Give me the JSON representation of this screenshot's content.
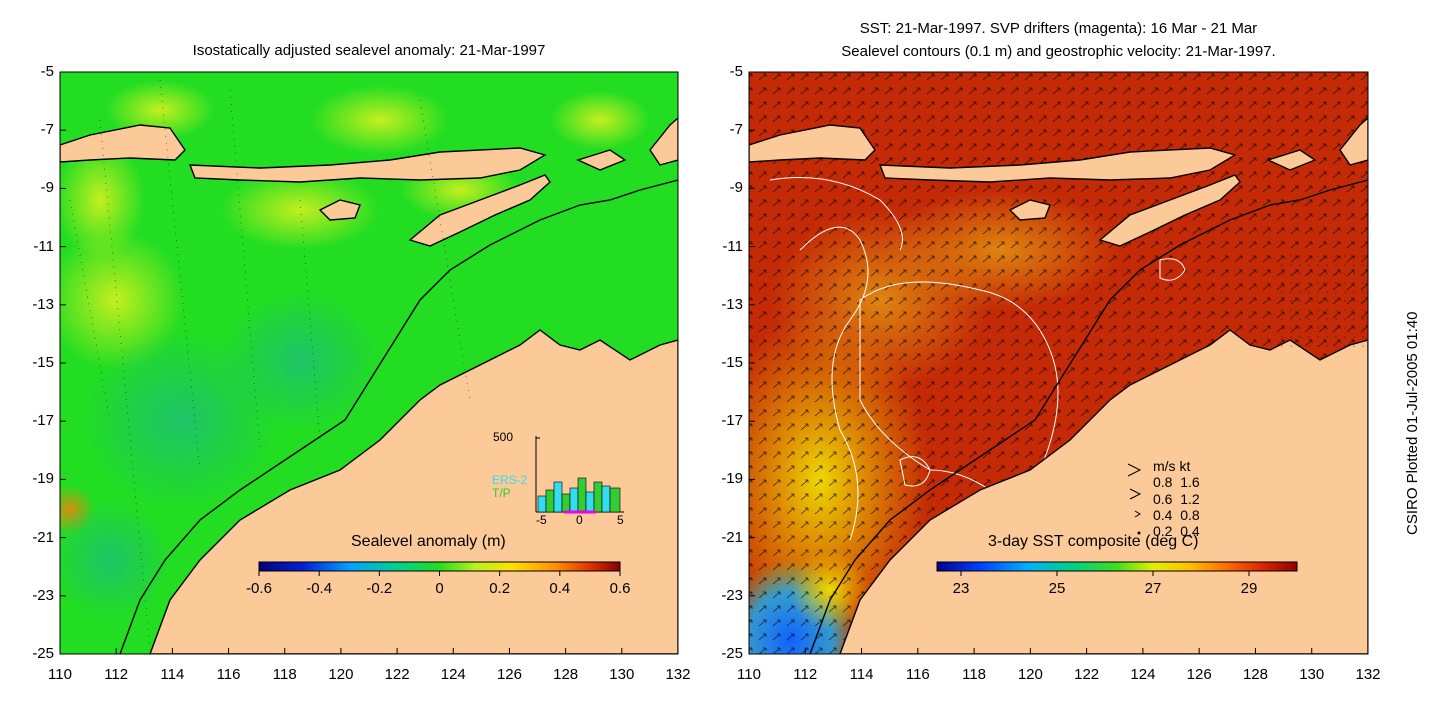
{
  "left_panel": {
    "title": "Isostatically adjusted sealevel anomaly: 21-Mar-1997",
    "colorbar": {
      "label": "Sealevel anomaly (m)",
      "ticks": [
        "-0.6",
        "-0.4",
        "-0.2",
        "0",
        "0.2",
        "0.4",
        "0.6"
      ],
      "range": [
        -0.6,
        0.6
      ]
    },
    "histogram": {
      "ymax_label": "500",
      "series": [
        {
          "name": "ERS-2",
          "color": "#33ddee"
        },
        {
          "name": "T/P",
          "color": "#33cc33"
        }
      ],
      "xticks": [
        "-5",
        "0",
        "5"
      ]
    }
  },
  "right_panel": {
    "title_line1": "SST: 21-Mar-1997. SVP drifters (magenta): 16 Mar - 21 Mar",
    "title_line2": "Sealevel contours (0.1 m) and geostrophic velocity: 21-Mar-1997.",
    "colorbar": {
      "label": "3-day SST composite (deg C)",
      "ticks": [
        "23",
        "25",
        "27",
        "29"
      ],
      "range": [
        22.5,
        30
      ]
    },
    "velocity_key": {
      "header": "m/s  kt",
      "rows": [
        {
          "ms": "0.8",
          "kt": "1.6"
        },
        {
          "ms": "0.6",
          "kt": "1.2"
        },
        {
          "ms": "0.4",
          "kt": "0.8"
        },
        {
          "ms": "0.2",
          "kt": "0.4"
        }
      ]
    }
  },
  "axes": {
    "x_ticks": [
      "110",
      "112",
      "114",
      "116",
      "118",
      "120",
      "122",
      "124",
      "126",
      "128",
      "130",
      "132"
    ],
    "y_ticks": [
      "-5",
      "-7",
      "-9",
      "-11",
      "-13",
      "-15",
      "-17",
      "-19",
      "-21",
      "-23",
      "-25"
    ],
    "lon_range": [
      110,
      132
    ],
    "lat_range": [
      -25,
      -5
    ]
  },
  "credit": "CSIRO Plotted 01-Jul-2005 01:40",
  "colors": {
    "land": "#fcc999",
    "sla_background": "#22dd22",
    "sst_background": "#c42a06"
  }
}
